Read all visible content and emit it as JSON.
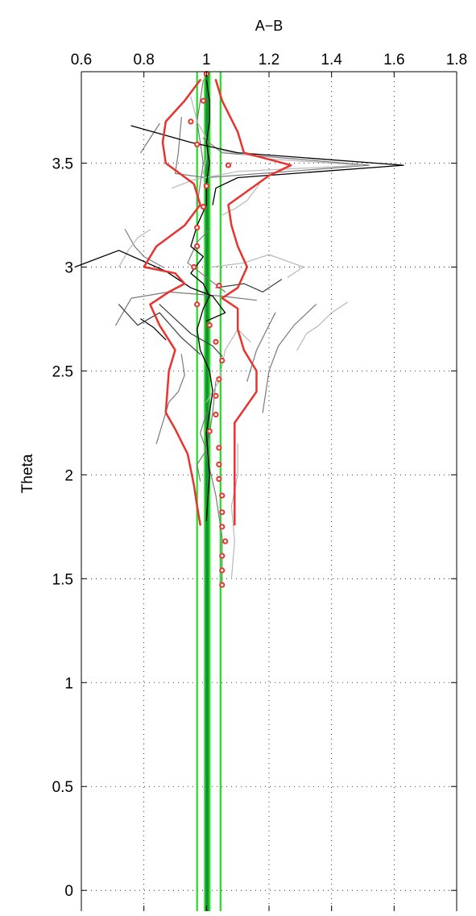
{
  "chart_data": {
    "type": "line",
    "title": "A−B",
    "xlabel": "",
    "ylabel": "Theta",
    "xlim": [
      0.6,
      1.8
    ],
    "ylim": [
      -0.1,
      3.94
    ],
    "xticks": [
      "0.6",
      "0.8",
      "1",
      "1.2",
      "1.4",
      "1.6",
      "1.8"
    ],
    "xtick_values": [
      0.6,
      0.8,
      1.0,
      1.2,
      1.4,
      1.6,
      1.8
    ],
    "yticks": [
      "0",
      "0.5",
      "1",
      "1.5",
      "2",
      "2.5",
      "3",
      "3.5"
    ],
    "ytick_values": [
      0,
      0.5,
      1.0,
      1.5,
      2.0,
      2.5,
      3.0,
      3.5
    ],
    "x_axis_position": "top",
    "grid": true,
    "legend": "none",
    "colors": {
      "red": "#e8332e",
      "green": "#1ee01e",
      "dark_green": "#1b8a3a",
      "black": "#000000",
      "gray": "#7a7a7a",
      "light_gray": "#b8b8b8"
    },
    "vertical_lines": [
      {
        "x": 0.97,
        "color": "#1ee01e"
      },
      {
        "x": 0.995,
        "color": "#1ee01e"
      },
      {
        "x": 1.0,
        "color": "#1b8a3a"
      },
      {
        "x": 1.005,
        "color": "#1b8a3a"
      },
      {
        "x": 1.01,
        "color": "#1ee01e"
      },
      {
        "x": 1.045,
        "color": "#1ee01e"
      }
    ],
    "series": [
      {
        "kind": "line",
        "color": "#e8332e",
        "width": 2.5,
        "points": [
          [
            1.09,
            1.76
          ],
          [
            1.09,
            2.0
          ],
          [
            1.09,
            2.25
          ],
          [
            1.16,
            2.4
          ],
          [
            1.16,
            2.5
          ],
          [
            1.12,
            2.6
          ],
          [
            1.1,
            2.7
          ],
          [
            1.1,
            2.8
          ],
          [
            1.05,
            2.85
          ],
          [
            1.1,
            2.9
          ],
          [
            1.13,
            3.0
          ],
          [
            1.1,
            3.1
          ],
          [
            1.08,
            3.2
          ],
          [
            1.07,
            3.3
          ],
          [
            1.2,
            3.44
          ],
          [
            1.27,
            3.49
          ],
          [
            1.12,
            3.55
          ],
          [
            1.1,
            3.65
          ],
          [
            1.05,
            3.8
          ],
          [
            1.03,
            3.9
          ]
        ]
      },
      {
        "kind": "line",
        "color": "#e8332e",
        "width": 2.5,
        "points": [
          [
            0.98,
            1.76
          ],
          [
            0.97,
            1.85
          ],
          [
            0.96,
            1.95
          ],
          [
            0.94,
            2.1
          ],
          [
            0.9,
            2.22
          ],
          [
            0.87,
            2.3
          ],
          [
            0.88,
            2.5
          ],
          [
            0.9,
            2.6
          ],
          [
            0.85,
            2.72
          ],
          [
            0.82,
            2.82
          ],
          [
            0.88,
            2.88
          ],
          [
            0.93,
            2.92
          ],
          [
            0.9,
            2.97
          ],
          [
            0.8,
            3.0
          ],
          [
            0.84,
            3.1
          ],
          [
            0.93,
            3.2
          ],
          [
            0.98,
            3.3
          ],
          [
            0.96,
            3.4
          ],
          [
            0.87,
            3.5
          ],
          [
            0.86,
            3.6
          ],
          [
            0.87,
            3.7
          ],
          [
            0.93,
            3.8
          ],
          [
            0.98,
            3.9
          ]
        ]
      },
      {
        "kind": "line",
        "color": "#000000",
        "width": 1.3,
        "points": [
          [
            1.0,
            1.78
          ],
          [
            1.01,
            2.0
          ],
          [
            1.0,
            2.2
          ],
          [
            1.02,
            2.4
          ],
          [
            1.01,
            2.5
          ],
          [
            0.98,
            2.6
          ],
          [
            0.97,
            2.7
          ],
          [
            0.99,
            2.8
          ],
          [
            1.01,
            2.86
          ],
          [
            0.99,
            2.92
          ],
          [
            0.95,
            2.97
          ],
          [
            0.99,
            3.05
          ],
          [
            0.95,
            3.1
          ],
          [
            0.97,
            3.2
          ],
          [
            1.0,
            3.3
          ],
          [
            1.0,
            3.4
          ],
          [
            1.01,
            3.5
          ],
          [
            1.0,
            3.6
          ],
          [
            1.01,
            3.7
          ],
          [
            1.01,
            3.8
          ],
          [
            1.0,
            3.9
          ]
        ]
      },
      {
        "kind": "line",
        "color": "#000000",
        "width": 1.3,
        "points": [
          [
            0.58,
            3.0
          ],
          [
            0.72,
            3.08
          ],
          [
            0.87,
            2.98
          ],
          [
            0.95,
            2.9
          ],
          [
            1.02,
            2.86
          ],
          [
            1.06,
            2.78
          ],
          [
            1.0,
            2.74
          ]
        ]
      },
      {
        "kind": "line",
        "color": "#000000",
        "width": 1.3,
        "points": [
          [
            0.76,
            3.68
          ],
          [
            0.95,
            3.6
          ],
          [
            1.1,
            3.55
          ],
          [
            1.63,
            3.49
          ],
          [
            1.1,
            3.43
          ],
          [
            1.03,
            3.38
          ],
          [
            1.02,
            3.3
          ]
        ]
      },
      {
        "kind": "line",
        "color": "#000000",
        "width": 1.2,
        "points": [
          [
            0.79,
            2.75
          ],
          [
            0.83,
            2.71
          ],
          [
            0.87,
            2.65
          ]
        ]
      },
      {
        "kind": "line",
        "color": "#3c3c3c",
        "width": 1.2,
        "points": [
          [
            1.03,
            2.9
          ],
          [
            1.12,
            2.92
          ],
          [
            1.18,
            2.88
          ],
          [
            1.24,
            2.94
          ]
        ]
      },
      {
        "kind": "line",
        "color": "#3c3c3c",
        "width": 1.2,
        "points": [
          [
            0.85,
            2.82
          ],
          [
            0.9,
            2.75
          ],
          [
            0.95,
            2.68
          ],
          [
            1.02,
            2.62
          ],
          [
            1.05,
            2.57
          ]
        ]
      },
      {
        "kind": "line",
        "color": "#3c3c3c",
        "width": 1.2,
        "points": [
          [
            0.72,
            2.82
          ],
          [
            0.78,
            2.72
          ],
          [
            0.85,
            2.78
          ],
          [
            0.92,
            2.66
          ],
          [
            0.98,
            2.58
          ]
        ]
      },
      {
        "kind": "line",
        "color": "#7a7a7a",
        "width": 1.2,
        "points": [
          [
            1.05,
            1.48
          ],
          [
            1.05,
            1.7
          ],
          [
            1.03,
            1.9
          ],
          [
            1.0,
            2.1
          ],
          [
            1.02,
            2.3
          ],
          [
            1.03,
            2.45
          ]
        ]
      },
      {
        "kind": "line",
        "color": "#7a7a7a",
        "width": 1.2,
        "points": [
          [
            0.98,
            1.97
          ],
          [
            0.97,
            2.05
          ],
          [
            1.0,
            2.12
          ],
          [
            0.98,
            2.2
          ],
          [
            1.0,
            2.3
          ]
        ]
      },
      {
        "kind": "line",
        "color": "#7a7a7a",
        "width": 1.2,
        "points": [
          [
            1.13,
            2.45
          ],
          [
            1.16,
            2.6
          ],
          [
            1.2,
            2.72
          ],
          [
            1.22,
            2.78
          ]
        ]
      },
      {
        "kind": "line",
        "color": "#7a7a7a",
        "width": 1.2,
        "points": [
          [
            1.18,
            2.3
          ],
          [
            1.2,
            2.5
          ],
          [
            1.23,
            2.62
          ],
          [
            1.28,
            2.72
          ],
          [
            1.35,
            2.82
          ]
        ]
      },
      {
        "kind": "line",
        "color": "#7a7a7a",
        "width": 1.2,
        "points": [
          [
            0.71,
            2.72
          ],
          [
            0.76,
            2.85
          ],
          [
            0.88,
            2.88
          ],
          [
            1.05,
            2.86
          ],
          [
            1.16,
            2.84
          ]
        ]
      },
      {
        "kind": "line",
        "color": "#7a7a7a",
        "width": 1.2,
        "points": [
          [
            0.92,
            2.58
          ],
          [
            0.93,
            2.48
          ],
          [
            0.91,
            2.4
          ],
          [
            0.88,
            2.35
          ],
          [
            0.86,
            2.25
          ],
          [
            0.84,
            2.15
          ]
        ]
      },
      {
        "kind": "line",
        "color": "#7a7a7a",
        "width": 1.2,
        "points": [
          [
            0.74,
            3.18
          ],
          [
            0.77,
            3.1
          ],
          [
            0.8,
            3.05
          ],
          [
            0.86,
            3.0
          ]
        ]
      },
      {
        "kind": "line",
        "color": "#7a7a7a",
        "width": 1.2,
        "points": [
          [
            0.92,
            3.72
          ],
          [
            0.91,
            3.55
          ],
          [
            0.9,
            3.45
          ],
          [
            1.0,
            3.43
          ],
          [
            1.52,
            3.49
          ],
          [
            1.05,
            3.55
          ],
          [
            0.99,
            3.62
          ]
        ]
      },
      {
        "kind": "line",
        "color": "#7a7a7a",
        "width": 1.2,
        "points": [
          [
            0.99,
            3.9
          ],
          [
            0.98,
            3.8
          ],
          [
            0.97,
            3.7
          ],
          [
            0.98,
            3.6
          ],
          [
            0.99,
            3.5
          ],
          [
            0.98,
            3.4
          ],
          [
            0.97,
            3.3
          ]
        ]
      },
      {
        "kind": "line",
        "color": "#7a7a7a",
        "width": 1.2,
        "points": [
          [
            1.06,
            2.88
          ],
          [
            1.0,
            2.95
          ],
          [
            0.94,
            3.02
          ],
          [
            0.97,
            3.12
          ],
          [
            1.01,
            3.18
          ]
        ]
      },
      {
        "kind": "line",
        "color": "#7a7a7a",
        "width": 1.2,
        "points": [
          [
            0.79,
            3.55
          ],
          [
            0.82,
            3.62
          ],
          [
            0.85,
            3.69
          ]
        ]
      },
      {
        "kind": "line",
        "color": "#b8b8b8",
        "width": 1.2,
        "points": [
          [
            1.08,
            1.5
          ],
          [
            1.09,
            1.68
          ],
          [
            1.08,
            1.85
          ],
          [
            1.1,
            2.0
          ],
          [
            1.1,
            2.15
          ]
        ]
      },
      {
        "kind": "line",
        "color": "#b8b8b8",
        "width": 1.2,
        "points": [
          [
            1.29,
            2.6
          ],
          [
            1.32,
            2.68
          ],
          [
            1.36,
            2.72
          ],
          [
            1.4,
            2.78
          ],
          [
            1.45,
            2.83
          ]
        ]
      },
      {
        "kind": "line",
        "color": "#b8b8b8",
        "width": 1.2,
        "points": [
          [
            1.02,
            3.0
          ],
          [
            1.12,
            3.02
          ],
          [
            1.2,
            3.06
          ],
          [
            1.31,
            3.0
          ],
          [
            1.26,
            2.95
          ]
        ]
      },
      {
        "kind": "line",
        "color": "#b8b8b8",
        "width": 1.2,
        "points": [
          [
            0.89,
            3.38
          ],
          [
            0.96,
            3.42
          ],
          [
            1.1,
            3.46
          ],
          [
            1.5,
            3.49
          ],
          [
            1.2,
            3.52
          ],
          [
            1.05,
            3.56
          ]
        ]
      },
      {
        "kind": "line",
        "color": "#b8b8b8",
        "width": 1.2,
        "points": [
          [
            1.17,
            3.4
          ],
          [
            1.13,
            3.32
          ],
          [
            1.09,
            3.28
          ],
          [
            1.05,
            3.25
          ]
        ]
      },
      {
        "kind": "line",
        "color": "#b8b8b8",
        "width": 1.2,
        "points": [
          [
            0.72,
            3.0
          ],
          [
            0.75,
            3.08
          ],
          [
            0.78,
            3.14
          ],
          [
            0.82,
            3.18
          ]
        ]
      },
      {
        "kind": "line",
        "color": "#b8b8b8",
        "width": 1.2,
        "points": [
          [
            1.0,
            2.35
          ],
          [
            1.04,
            2.45
          ],
          [
            1.06,
            2.6
          ],
          [
            1.1,
            2.7
          ],
          [
            1.14,
            2.64
          ]
        ]
      },
      {
        "kind": "line",
        "color": "#b8b8b8",
        "width": 1.2,
        "points": [
          [
            0.95,
            3.82
          ],
          [
            0.97,
            3.7
          ],
          [
            1.0,
            3.62
          ],
          [
            1.0,
            3.52
          ],
          [
            0.99,
            3.45
          ]
        ]
      }
    ],
    "markers": {
      "color": "#e8332e",
      "points": [
        [
          1.0,
          3.93
        ],
        [
          0.99,
          3.8
        ],
        [
          0.95,
          3.7
        ],
        [
          0.97,
          3.59
        ],
        [
          1.07,
          3.49
        ],
        [
          1.0,
          3.39
        ],
        [
          0.99,
          3.29
        ],
        [
          0.97,
          3.19
        ],
        [
          0.97,
          3.1
        ],
        [
          0.96,
          3.0
        ],
        [
          1.04,
          2.91
        ],
        [
          0.97,
          2.82
        ],
        [
          1.01,
          2.72
        ],
        [
          1.03,
          2.64
        ],
        [
          1.05,
          2.55
        ],
        [
          1.04,
          2.46
        ],
        [
          1.03,
          2.38
        ],
        [
          1.03,
          2.29
        ],
        [
          1.01,
          2.21
        ],
        [
          1.04,
          2.13
        ],
        [
          1.04,
          2.05
        ],
        [
          1.04,
          1.98
        ],
        [
          1.05,
          1.9
        ],
        [
          1.05,
          1.82
        ],
        [
          1.05,
          1.75
        ],
        [
          1.06,
          1.68
        ],
        [
          1.05,
          1.61
        ],
        [
          1.05,
          1.54
        ],
        [
          1.05,
          1.47
        ]
      ]
    }
  }
}
